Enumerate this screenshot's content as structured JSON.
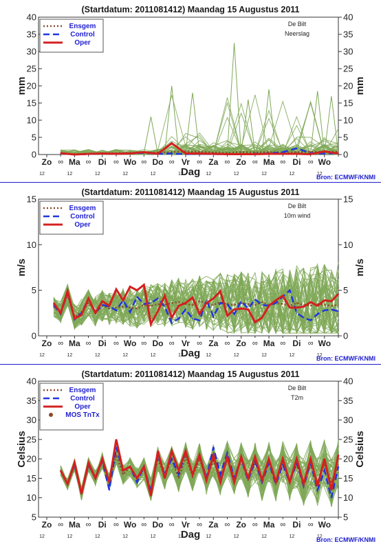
{
  "charts": [
    {
      "header": "(Startdatum: 2011081412)   Maandag   15 Augustus  2011",
      "station": "De Bilt",
      "variable": "Neerslag",
      "ylabel": "mm",
      "xlabel": "Dag",
      "source": "Bron: ECMWF/KNMI",
      "yticks": [
        0,
        5,
        10,
        15,
        20,
        25,
        30,
        35,
        40
      ],
      "legend": [
        {
          "label": "Ensgem",
          "color": "#8b4a2b",
          "dash": "2,3",
          "width": 2.5
        },
        {
          "label": "Control",
          "color": "#1e35e0",
          "dash": "9,5",
          "width": 2.5
        },
        {
          "label": "Oper",
          "color": "#d42020",
          "dash": "",
          "width": 3
        }
      ]
    },
    {
      "header": "(Startdatum: 2011081412)   Maandag   15 Augustus  2011",
      "station": "De Bilt",
      "variable": "10m wind",
      "ylabel": "m/s",
      "xlabel": "Dag",
      "source": "Bron: ECMWF/KNMI",
      "yticks": [
        0,
        5,
        10,
        15
      ],
      "legend": [
        {
          "label": "Ensgem",
          "color": "#8b4a2b",
          "dash": "2,3",
          "width": 2.5
        },
        {
          "label": "Control",
          "color": "#1e35e0",
          "dash": "9,5",
          "width": 2.5
        },
        {
          "label": "Oper",
          "color": "#d42020",
          "dash": "",
          "width": 3
        }
      ]
    },
    {
      "header": "(Startdatum: 2011081412)   Maandag   15 Augustus  2011",
      "station": "De Bilt",
      "variable": "T2m",
      "ylabel": "Celsius",
      "xlabel": "Dag",
      "source": "Bron: ECMWF/KNMI",
      "yticks": [
        5,
        10,
        15,
        20,
        25,
        30,
        35,
        40
      ],
      "legend": [
        {
          "label": "Ensgem",
          "color": "#8b4a2b",
          "dash": "2,3",
          "width": 2.5
        },
        {
          "label": "Control",
          "color": "#1e35e0",
          "dash": "9,5",
          "width": 2.5
        },
        {
          "label": "Oper",
          "color": "#d42020",
          "dash": "",
          "width": 3
        },
        {
          "label": "MOS TnTx",
          "color": "#8b4a2b",
          "marker": "dot"
        }
      ]
    }
  ],
  "x_axis": {
    "day_labels": [
      "Zo",
      "Ma",
      "Di",
      "Wo",
      "Do",
      "Vr",
      "Za",
      "Zo",
      "Ma",
      "Di",
      "Wo"
    ],
    "hour_label": "12",
    "midnight_symbol": "∞"
  },
  "chart_data": [
    {
      "type": "line",
      "title": "Neerslag",
      "xlabel": "Dag",
      "ylabel": "mm",
      "ylim": [
        0,
        40
      ],
      "x_unit": "days since Zo 00 UTC (tick 12 = +0.5)",
      "x_range": [
        0,
        10.5
      ],
      "series": [
        {
          "name": "Ensgem",
          "x": [
            0.5,
            1,
            1.5,
            2,
            2.5,
            3,
            3.5,
            4,
            4.5,
            5,
            5.5,
            6,
            6.5,
            7,
            7.5,
            8,
            8.5,
            9,
            9.5,
            10,
            10.5
          ],
          "values": [
            0.2,
            0.1,
            0.2,
            0.3,
            0.4,
            0.5,
            0.5,
            0.6,
            0.7,
            0.9,
            0.8,
            0.6,
            0.5,
            0.7,
            0.6,
            0.7,
            0.6,
            0.7,
            0.8,
            0.7,
            0.8
          ]
        },
        {
          "name": "Control",
          "x": [
            0.5,
            1,
            1.5,
            2,
            2.5,
            3,
            3.5,
            4,
            4.5,
            5,
            5.5,
            6,
            6.5,
            7,
            7.5,
            8,
            8.5,
            9,
            9.5,
            10,
            10.5
          ],
          "values": [
            0.3,
            0,
            0.1,
            0.3,
            0.2,
            0.3,
            0.5,
            0.2,
            0.3,
            0.1,
            0.2,
            0.1,
            0.1,
            0.1,
            0.2,
            0.3,
            0.7,
            1.8,
            0.4,
            0.3,
            0.4
          ]
        },
        {
          "name": "Oper",
          "x": [
            0.5,
            1,
            1.5,
            2,
            2.5,
            3,
            3.5,
            4,
            4.5,
            5,
            5.5,
            6,
            6.5,
            7,
            7.5,
            8,
            8.5,
            9,
            9.5,
            10,
            10.5
          ],
          "values": [
            0.4,
            0,
            0.2,
            0.3,
            0.2,
            0.3,
            0.7,
            0.2,
            3.3,
            0.3,
            0.3,
            0.2,
            0.1,
            0.1,
            0.1,
            0.2,
            0.2,
            0.2,
            0.1,
            0.9,
            0.3
          ]
        }
      ]
    },
    {
      "type": "line",
      "title": "10m wind",
      "xlabel": "Dag",
      "ylabel": "m/s",
      "ylim": [
        0,
        15
      ],
      "x_range": [
        0,
        10.5
      ],
      "series": [
        {
          "name": "Ensgem",
          "x": [
            0.25,
            0.5,
            0.75,
            1,
            1.25,
            1.5,
            1.75,
            2,
            2.25,
            2.5,
            2.75,
            3,
            3.25,
            3.5,
            3.75,
            4,
            4.25,
            4.5,
            4.75,
            5,
            5.25,
            5.5,
            5.75,
            6,
            6.25,
            6.5,
            6.75,
            7,
            7.25,
            7.5,
            7.75,
            8,
            8.25,
            8.5,
            8.75,
            9,
            9.25,
            9.5,
            9.75,
            10,
            10.25,
            10.5
          ],
          "values": [
            3.2,
            2.6,
            4.5,
            2.1,
            2.6,
            3.6,
            2.7,
            3.3,
            3,
            3.1,
            3.2,
            3.1,
            3,
            3.4,
            3.3,
            3.5,
            3.4,
            3.6,
            3.7,
            3.5,
            3.4,
            3.8,
            3.6,
            3.4,
            3.7,
            3.5,
            3.4,
            3.6,
            3.5,
            3.4,
            3.7,
            3.4,
            3.6,
            3.5,
            3.3,
            3.6,
            3.4,
            3.3,
            3.5,
            3.4,
            3.3,
            3.4
          ]
        },
        {
          "name": "Control",
          "x": [
            0.25,
            0.5,
            0.75,
            1,
            1.25,
            1.5,
            1.75,
            2,
            2.25,
            2.5,
            2.75,
            3,
            3.25,
            3.5,
            3.75,
            4,
            4.25,
            4.5,
            4.75,
            5,
            5.25,
            5.5,
            5.75,
            6,
            6.25,
            6.5,
            6.75,
            7,
            7.25,
            7.5,
            7.75,
            8,
            8.25,
            8.5,
            8.75,
            9,
            9.25,
            9.5,
            9.75,
            10,
            10.25,
            10.5
          ],
          "values": [
            3.4,
            2.4,
            4.8,
            1.8,
            2.5,
            4.1,
            2.5,
            3.4,
            3.2,
            2.8,
            3.9,
            2.6,
            4.3,
            3.5,
            3.6,
            4.1,
            3.2,
            1.4,
            1.9,
            2.9,
            1.9,
            1.7,
            3.9,
            2.1,
            3.6,
            3.5,
            2.4,
            3.8,
            3,
            4,
            3.4,
            3.3,
            3.6,
            4.3,
            5,
            2.5,
            2,
            1.7,
            2.4,
            2.8,
            2.9,
            2.7
          ]
        },
        {
          "name": "Oper",
          "x": [
            0.25,
            0.5,
            0.75,
            1,
            1.25,
            1.5,
            1.75,
            2,
            2.25,
            2.5,
            2.75,
            3,
            3.25,
            3.5,
            3.75,
            4,
            4.25,
            4.5,
            4.75,
            5,
            5.25,
            5.5,
            5.75,
            6,
            6.25,
            6.5,
            6.75,
            7,
            7.25,
            7.5,
            7.75,
            8,
            8.25,
            8.5,
            8.75,
            9,
            9.25,
            9.5,
            9.75,
            10,
            10.25,
            10.5
          ],
          "values": [
            3.6,
            2.5,
            4.9,
            1.9,
            2.3,
            4.1,
            2.5,
            3.8,
            3.3,
            5.1,
            3.9,
            5.4,
            5,
            5.6,
            1.3,
            2.7,
            4.4,
            2,
            3.3,
            3.6,
            4.2,
            2.4,
            3.6,
            4.1,
            4.9,
            2.2,
            2.9,
            3,
            2.9,
            1.5,
            2,
            3.3,
            3.9,
            4.4,
            3.1,
            3.1,
            3.2,
            3.7,
            3.3,
            3.9,
            3.8,
            4.6
          ]
        }
      ]
    },
    {
      "type": "line",
      "title": "T2m",
      "xlabel": "Dag",
      "ylabel": "Celsius",
      "ylim": [
        5,
        40
      ],
      "x_range": [
        0,
        10.5
      ],
      "series": [
        {
          "name": "Ensgem",
          "x": [
            0.5,
            0.75,
            1,
            1.25,
            1.5,
            1.75,
            2,
            2.25,
            2.5,
            2.75,
            3,
            3.25,
            3.5,
            3.75,
            4,
            4.25,
            4.5,
            4.75,
            5,
            5.25,
            5.5,
            5.75,
            6,
            6.25,
            6.5,
            6.75,
            7,
            7.25,
            7.5,
            7.75,
            8,
            8.25,
            8.5,
            8.75,
            9,
            9.25,
            9.5,
            9.75,
            10,
            10.25,
            10.5
          ],
          "values": [
            17,
            13.5,
            18.5,
            11,
            18.5,
            15,
            19.5,
            14,
            21,
            16,
            18,
            15,
            17.5,
            12,
            20,
            15.5,
            20,
            15,
            20.5,
            15.5,
            20,
            15,
            19.5,
            15,
            20,
            15.5,
            19.5,
            15,
            19,
            14.5,
            19,
            14.5,
            19,
            14.5,
            18.5,
            14,
            18.5,
            14,
            18.5,
            14,
            18.5
          ]
        },
        {
          "name": "Control",
          "x": [
            0.5,
            0.75,
            1,
            1.25,
            1.5,
            1.75,
            2,
            2.25,
            2.5,
            2.75,
            3,
            3.25,
            3.5,
            3.75,
            4,
            4.25,
            4.5,
            4.75,
            5,
            5.25,
            5.5,
            5.75,
            6,
            6.25,
            6.5,
            6.75,
            7,
            7.25,
            7.5,
            7.75,
            8,
            8.25,
            8.5,
            8.75,
            9,
            9.25,
            9.5,
            9.75,
            10,
            10.25,
            10.5
          ],
          "values": [
            17,
            13.5,
            18.5,
            11,
            18.5,
            15,
            19.5,
            12,
            23,
            17,
            18,
            14,
            18,
            11.5,
            21,
            16,
            20,
            16,
            22,
            16,
            21,
            15,
            23,
            16,
            21.5,
            15,
            20,
            14.5,
            19.5,
            14,
            19,
            13.5,
            18.5,
            14,
            19,
            13,
            19,
            12,
            17,
            10,
            18
          ]
        },
        {
          "name": "Oper",
          "x": [
            0.5,
            0.75,
            1,
            1.25,
            1.5,
            1.75,
            2,
            2.25,
            2.5,
            2.75,
            3,
            3.25,
            3.5,
            3.75,
            4,
            4.25,
            4.5,
            4.75,
            5,
            5.25,
            5.5,
            5.75,
            6,
            6.25,
            6.5,
            6.75,
            7,
            7.25,
            7.5,
            7.75,
            8,
            8.25,
            8.5,
            8.75,
            9,
            9.25,
            9.5,
            9.75,
            10,
            10.25,
            10.5
          ],
          "values": [
            17,
            13.5,
            19,
            11,
            19,
            15,
            20,
            14,
            25,
            17,
            18,
            15,
            18,
            10.5,
            22,
            15,
            22,
            17,
            22,
            16,
            21,
            14.5,
            21,
            14,
            20.5,
            14,
            20.5,
            15,
            20.5,
            14.5,
            20,
            14,
            20,
            14,
            20,
            13.5,
            20,
            13,
            20,
            12,
            21
          ]
        }
      ]
    }
  ]
}
